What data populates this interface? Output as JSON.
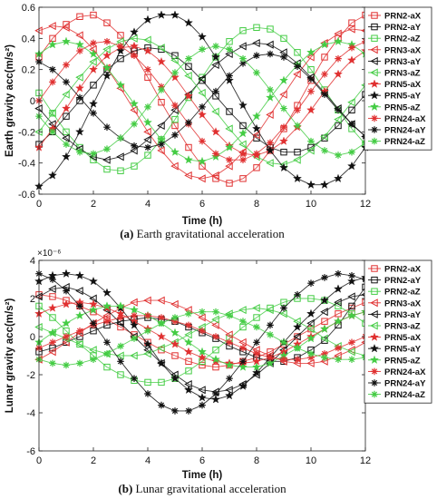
{
  "chart_data": [
    {
      "type": "line",
      "caption_letter": "(a)",
      "caption_text": "Earth gravitational acceleration",
      "xlabel": "Time (h)",
      "ylabel": "Earth gravity acc(m/s²)",
      "xlim": [
        0,
        12
      ],
      "ylim": [
        -0.6,
        0.6
      ],
      "xticks": [
        "0",
        "2",
        "4",
        "6",
        "8",
        "10",
        "12"
      ],
      "yticks": [
        "-0.6",
        "-0.4",
        "-0.2",
        "0",
        "0.2",
        "0.4",
        "0.6"
      ],
      "x": [
        0,
        0.5,
        1,
        1.5,
        2,
        2.5,
        3,
        3.5,
        4,
        4.5,
        5,
        5.5,
        6,
        6.5,
        7,
        7.5,
        8,
        8.5,
        9,
        9.5,
        10,
        10.5,
        11,
        11.5,
        12
      ],
      "series": [
        {
          "name": "PRN2-aX",
          "color": "#e03030",
          "marker": "square",
          "values": [
            0.28,
            0.4,
            0.49,
            0.54,
            0.55,
            0.5,
            0.42,
            0.3,
            0.15,
            -0.01,
            -0.16,
            -0.3,
            -0.42,
            -0.5,
            -0.53,
            -0.5,
            -0.43,
            -0.32,
            -0.18,
            -0.03,
            0.13,
            0.28,
            0.4,
            0.5,
            0.55
          ]
        },
        {
          "name": "PRN2-aY",
          "color": "#111111",
          "marker": "square",
          "values": [
            -0.28,
            -0.2,
            -0.1,
            0.0,
            0.1,
            0.2,
            0.27,
            0.32,
            0.34,
            0.33,
            0.29,
            0.22,
            0.13,
            0.03,
            -0.07,
            -0.16,
            -0.24,
            -0.3,
            -0.33,
            -0.33,
            -0.3,
            -0.24,
            -0.16,
            -0.06,
            0.04
          ]
        },
        {
          "name": "PRN2-aZ",
          "color": "#44cc44",
          "marker": "square",
          "values": [
            0.05,
            -0.08,
            -0.2,
            -0.3,
            -0.38,
            -0.44,
            -0.45,
            -0.42,
            -0.35,
            -0.25,
            -0.12,
            0.02,
            0.15,
            0.28,
            0.38,
            0.45,
            0.47,
            0.46,
            0.4,
            0.31,
            0.2,
            0.07,
            -0.06,
            -0.18,
            -0.28
          ]
        },
        {
          "name": "PRN3-aX",
          "color": "#e03030",
          "marker": "triangle-left",
          "values": [
            0.45,
            0.48,
            0.47,
            0.42,
            0.33,
            0.21,
            0.08,
            -0.06,
            -0.2,
            -0.32,
            -0.42,
            -0.48,
            -0.5,
            -0.48,
            -0.42,
            -0.33,
            -0.22,
            -0.09,
            0.04,
            0.17,
            0.28,
            0.37,
            0.43,
            0.46,
            0.45
          ]
        },
        {
          "name": "PRN3-aY",
          "color": "#111111",
          "marker": "triangle-left",
          "values": [
            -0.05,
            -0.15,
            -0.24,
            -0.31,
            -0.36,
            -0.38,
            -0.36,
            -0.32,
            -0.25,
            -0.16,
            -0.06,
            0.04,
            0.14,
            0.23,
            0.3,
            0.35,
            0.37,
            0.36,
            0.31,
            0.24,
            0.15,
            0.05,
            -0.05,
            -0.15,
            -0.23
          ]
        },
        {
          "name": "PRN3-aZ",
          "color": "#44cc44",
          "marker": "triangle-left",
          "values": [
            -0.2,
            -0.08,
            0.04,
            0.15,
            0.25,
            0.33,
            0.38,
            0.4,
            0.39,
            0.34,
            0.26,
            0.16,
            0.05,
            -0.07,
            -0.18,
            -0.28,
            -0.36,
            -0.4,
            -0.41,
            -0.38,
            -0.32,
            -0.23,
            -0.12,
            -0.01,
            0.1
          ]
        },
        {
          "name": "PRN5-aX",
          "color": "#e03030",
          "marker": "star",
          "values": [
            -0.3,
            -0.18,
            -0.05,
            0.08,
            0.2,
            0.29,
            0.34,
            0.35,
            0.32,
            0.25,
            0.15,
            0.03,
            -0.09,
            -0.2,
            -0.29,
            -0.34,
            -0.35,
            -0.32,
            -0.26,
            -0.17,
            -0.06,
            0.06,
            0.17,
            0.26,
            0.32
          ]
        },
        {
          "name": "PRN5-aY",
          "color": "#111111",
          "marker": "star",
          "values": [
            -0.55,
            -0.48,
            -0.36,
            -0.2,
            -0.02,
            0.16,
            0.32,
            0.44,
            0.52,
            0.55,
            0.55,
            0.5,
            0.41,
            0.28,
            0.13,
            -0.03,
            -0.18,
            -0.32,
            -0.43,
            -0.5,
            -0.54,
            -0.54,
            -0.5,
            -0.42,
            -0.3
          ]
        },
        {
          "name": "PRN5-aZ",
          "color": "#44cc44",
          "marker": "star",
          "values": [
            0.3,
            0.36,
            0.38,
            0.36,
            0.3,
            0.21,
            0.1,
            -0.02,
            -0.14,
            -0.25,
            -0.33,
            -0.38,
            -0.39,
            -0.36,
            -0.3,
            -0.21,
            -0.1,
            0.02,
            0.13,
            0.23,
            0.31,
            0.36,
            0.38,
            0.36,
            0.3
          ]
        },
        {
          "name": "PRN24-aX",
          "color": "#e03030",
          "marker": "asterisk",
          "values": [
            0.0,
            0.12,
            0.23,
            0.32,
            0.37,
            0.38,
            0.35,
            0.29,
            0.2,
            0.09,
            -0.03,
            -0.15,
            -0.26,
            -0.34,
            -0.38,
            -0.38,
            -0.34,
            -0.27,
            -0.17,
            -0.06,
            0.06,
            0.17,
            0.27,
            0.34,
            0.38
          ]
        },
        {
          "name": "PRN24-aY",
          "color": "#111111",
          "marker": "asterisk",
          "values": [
            0.25,
            0.2,
            0.12,
            0.02,
            -0.08,
            -0.17,
            -0.24,
            -0.29,
            -0.3,
            -0.28,
            -0.22,
            -0.14,
            -0.04,
            0.06,
            0.16,
            0.24,
            0.29,
            0.3,
            0.28,
            0.22,
            0.14,
            0.04,
            -0.06,
            -0.15,
            -0.23
          ]
        },
        {
          "name": "PRN24-aZ",
          "color": "#44cc44",
          "marker": "asterisk",
          "values": [
            -0.1,
            -0.2,
            -0.28,
            -0.33,
            -0.34,
            -0.31,
            -0.24,
            -0.15,
            -0.04,
            0.07,
            0.18,
            0.27,
            0.33,
            0.35,
            0.33,
            0.27,
            0.18,
            0.07,
            -0.05,
            -0.16,
            -0.26,
            -0.32,
            -0.35,
            -0.33,
            -0.27
          ]
        }
      ]
    },
    {
      "type": "line",
      "caption_letter": "(b)",
      "caption_text": "Lunar gravitational acceleration",
      "xlabel": "Time (h)",
      "ylabel": "Lunar gravity acc(m/s²)",
      "y_exponent": "×10⁻⁶",
      "xlim": [
        0,
        12
      ],
      "ylim": [
        -6,
        4
      ],
      "xticks": [
        "0",
        "2",
        "4",
        "6",
        "8",
        "10",
        "12"
      ],
      "yticks": [
        "-6",
        "-4",
        "-2",
        "0",
        "2",
        "4"
      ],
      "x": [
        0,
        0.5,
        1,
        1.5,
        2,
        2.5,
        3,
        3.5,
        4,
        4.5,
        5,
        5.5,
        6,
        6.5,
        7,
        7.5,
        8,
        8.5,
        9,
        9.5,
        10,
        10.5,
        11,
        11.5,
        12
      ],
      "series": [
        {
          "name": "PRN2-aX",
          "color": "#e03030",
          "marker": "square",
          "values": [
            2.2,
            2.1,
            1.9,
            1.6,
            1.3,
            0.9,
            0.5,
            0.1,
            -0.3,
            -0.7,
            -1.0,
            -1.3,
            -1.5,
            -1.6,
            -1.5,
            -1.3,
            -1.1,
            -0.8,
            -0.4,
            0.0,
            0.4,
            0.8,
            1.2,
            1.5,
            1.8
          ]
        },
        {
          "name": "PRN2-aY",
          "color": "#111111",
          "marker": "square",
          "values": [
            -0.8,
            -0.6,
            -0.3,
            0.0,
            0.3,
            0.6,
            0.8,
            0.9,
            1.0,
            0.9,
            0.8,
            0.5,
            0.2,
            -0.1,
            -0.5,
            -0.8,
            -1.1,
            -1.3,
            -1.3,
            -1.1,
            -0.7,
            -0.2,
            0.6,
            1.6,
            2.6
          ]
        },
        {
          "name": "PRN2-aZ",
          "color": "#44cc44",
          "marker": "square",
          "values": [
            1.6,
            1.0,
            0.3,
            -0.4,
            -1.0,
            -1.6,
            -2.0,
            -2.3,
            -2.4,
            -2.4,
            -2.2,
            -1.8,
            -1.3,
            -0.7,
            -0.1,
            0.5,
            1.0,
            1.5,
            1.8,
            2.0,
            2.0,
            1.9,
            1.6,
            1.2,
            0.7
          ]
        },
        {
          "name": "PRN3-aX",
          "color": "#e03030",
          "marker": "triangle-left",
          "values": [
            -1.2,
            -0.8,
            -0.3,
            0.2,
            0.7,
            1.1,
            1.5,
            1.8,
            1.9,
            1.9,
            1.7,
            1.4,
            1.0,
            0.6,
            0.1,
            -0.3,
            -0.7,
            -1.0,
            -1.3,
            -1.4,
            -1.4,
            -1.3,
            -1.0,
            -0.7,
            -0.3
          ]
        },
        {
          "name": "PRN3-aY",
          "color": "#111111",
          "marker": "triangle-left",
          "values": [
            2.1,
            2.5,
            2.6,
            2.4,
            2.0,
            1.4,
            0.7,
            0.0,
            -0.7,
            -1.4,
            -2.0,
            -2.5,
            -2.8,
            -2.9,
            -2.8,
            -2.5,
            -2.0,
            -1.4,
            -0.7,
            0.0,
            0.7,
            1.3,
            1.8,
            2.1,
            2.2
          ]
        },
        {
          "name": "PRN3-aZ",
          "color": "#44cc44",
          "marker": "triangle-left",
          "values": [
            0.5,
            0.2,
            -0.1,
            -0.4,
            -0.7,
            -0.9,
            -1.0,
            -1.0,
            -0.9,
            -0.6,
            -0.3,
            0.1,
            0.5,
            0.9,
            1.2,
            1.4,
            1.5,
            1.4,
            1.2,
            0.8,
            0.4,
            -0.1,
            -0.5,
            -0.8,
            -1.0
          ]
        },
        {
          "name": "PRN5-aX",
          "color": "#e03030",
          "marker": "star",
          "values": [
            1.2,
            1.5,
            1.7,
            1.8,
            1.7,
            1.5,
            1.2,
            0.8,
            0.4,
            0.0,
            -0.4,
            -0.8,
            -1.1,
            -1.3,
            -1.4,
            -1.4,
            -1.3,
            -1.1,
            -0.8,
            -0.4,
            0.0,
            0.4,
            0.8,
            1.1,
            1.3
          ]
        },
        {
          "name": "PRN5-aY",
          "color": "#111111",
          "marker": "star",
          "values": [
            2.9,
            3.2,
            3.3,
            3.2,
            2.9,
            2.3,
            1.5,
            0.6,
            -0.4,
            -1.4,
            -2.2,
            -2.8,
            -3.2,
            -3.3,
            -3.1,
            -2.6,
            -1.9,
            -1.1,
            -0.3,
            0.5,
            1.2,
            1.9,
            2.5,
            2.9,
            3.1
          ]
        },
        {
          "name": "PRN5-aZ",
          "color": "#44cc44",
          "marker": "star",
          "values": [
            -0.3,
            0.2,
            0.7,
            1.1,
            1.4,
            1.6,
            1.6,
            1.4,
            1.1,
            0.7,
            0.2,
            -0.3,
            -0.8,
            -1.2,
            -1.5,
            -1.6,
            -1.6,
            -1.4,
            -1.0,
            -0.6,
            -0.1,
            0.4,
            0.8,
            1.1,
            1.3
          ]
        },
        {
          "name": "PRN24-aX",
          "color": "#e03030",
          "marker": "asterisk",
          "values": [
            -0.6,
            -0.3,
            0.0,
            0.3,
            0.6,
            0.8,
            1.0,
            1.1,
            1.1,
            1.0,
            0.8,
            0.6,
            0.3,
            0.0,
            -0.3,
            -0.6,
            -0.9,
            -1.1,
            -1.2,
            -1.2,
            -1.1,
            -0.9,
            -0.6,
            -0.3,
            0.0
          ]
        },
        {
          "name": "PRN24-aY",
          "color": "#111111",
          "marker": "asterisk",
          "values": [
            3.3,
            3.0,
            2.4,
            1.6,
            0.7,
            -0.3,
            -1.3,
            -2.2,
            -3.0,
            -3.6,
            -3.9,
            -3.9,
            -3.6,
            -3.0,
            -2.2,
            -1.3,
            -0.3,
            0.6,
            1.5,
            2.2,
            2.8,
            3.1,
            3.3,
            3.2,
            3.0
          ]
        },
        {
          "name": "PRN24-aZ",
          "color": "#44cc44",
          "marker": "asterisk",
          "values": [
            -1.2,
            -1.4,
            -1.5,
            -1.4,
            -1.2,
            -0.9,
            -0.5,
            -0.1,
            0.3,
            0.7,
            1.0,
            1.2,
            1.3,
            1.3,
            1.1,
            0.8,
            0.5,
            0.1,
            -0.3,
            -0.6,
            -0.9,
            -1.1,
            -1.2,
            -1.2,
            -1.1
          ]
        }
      ]
    }
  ]
}
